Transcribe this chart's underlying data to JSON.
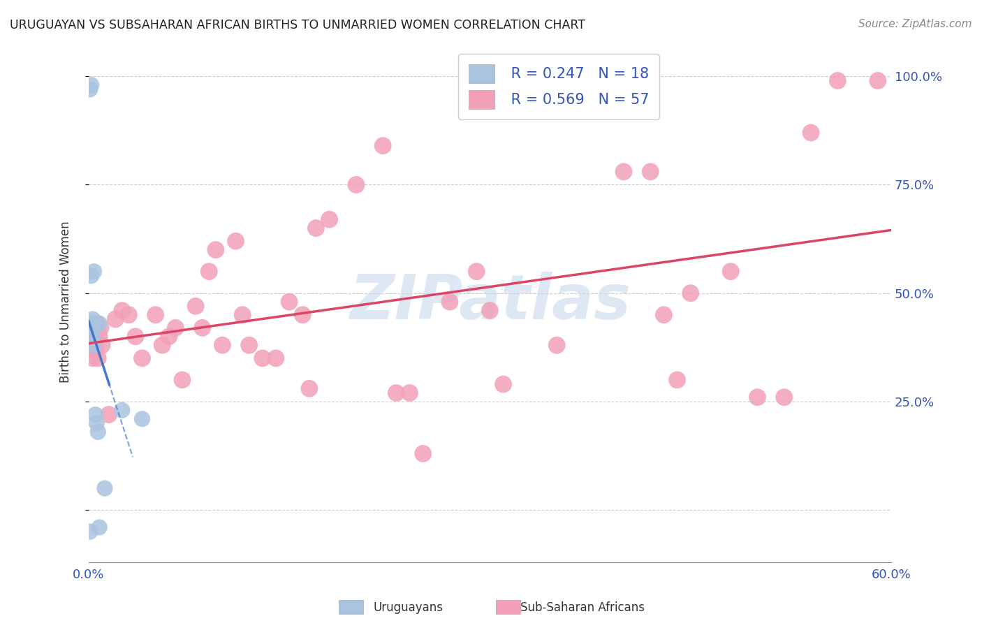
{
  "title": "URUGUAYAN VS SUBSAHARAN AFRICAN BIRTHS TO UNMARRIED WOMEN CORRELATION CHART",
  "source": "Source: ZipAtlas.com",
  "ylabel": "Births to Unmarried Women",
  "xlim": [
    0.0,
    0.6
  ],
  "ylim": [
    -0.12,
    1.08
  ],
  "xtick_positions": [
    0.0,
    0.1,
    0.2,
    0.3,
    0.4,
    0.5,
    0.6
  ],
  "xticklabels": [
    "0.0%",
    "",
    "",
    "",
    "",
    "",
    "60.0%"
  ],
  "ytick_positions": [
    0.0,
    0.25,
    0.5,
    0.75,
    1.0
  ],
  "yticklabels": [
    "",
    "25.0%",
    "50.0%",
    "75.0%",
    "100.0%"
  ],
  "background": "#ffffff",
  "grid_color": "#cccccc",
  "uruguayan_color": "#aac4e0",
  "subsaharan_color": "#f2a0b8",
  "trendline_blue": "#4477cc",
  "trendline_pink": "#dd4466",
  "watermark_color": "#c8d8ee",
  "legend_r1": "R = 0.247",
  "legend_n1": "N = 18",
  "legend_r2": "R = 0.569",
  "legend_n2": "N = 57",
  "label_color": "#3355bb",
  "uruguayan_x": [
    0.001,
    0.002,
    0.002,
    0.003,
    0.003,
    0.003,
    0.003,
    0.004,
    0.004,
    0.005,
    0.006,
    0.007,
    0.008,
    0.008,
    0.012,
    0.025,
    0.04,
    0.001
  ],
  "uruguayan_y": [
    0.97,
    0.98,
    0.54,
    0.42,
    0.44,
    0.4,
    0.43,
    0.38,
    0.55,
    0.22,
    0.2,
    0.18,
    0.43,
    -0.04,
    0.05,
    0.23,
    0.21,
    -0.05
  ],
  "subsaharan_x": [
    0.001,
    0.002,
    0.003,
    0.004,
    0.005,
    0.006,
    0.007,
    0.008,
    0.009,
    0.01,
    0.015,
    0.02,
    0.025,
    0.03,
    0.035,
    0.04,
    0.05,
    0.055,
    0.06,
    0.065,
    0.07,
    0.08,
    0.085,
    0.09,
    0.095,
    0.1,
    0.11,
    0.115,
    0.12,
    0.13,
    0.14,
    0.15,
    0.16,
    0.165,
    0.17,
    0.18,
    0.2,
    0.22,
    0.23,
    0.24,
    0.25,
    0.27,
    0.29,
    0.3,
    0.31,
    0.35,
    0.4,
    0.42,
    0.43,
    0.44,
    0.45,
    0.48,
    0.5,
    0.52,
    0.54,
    0.56,
    0.59
  ],
  "subsaharan_y": [
    0.42,
    0.38,
    0.35,
    0.4,
    0.37,
    0.43,
    0.35,
    0.4,
    0.42,
    0.38,
    0.22,
    0.44,
    0.46,
    0.45,
    0.4,
    0.35,
    0.45,
    0.38,
    0.4,
    0.42,
    0.3,
    0.47,
    0.42,
    0.55,
    0.6,
    0.38,
    0.62,
    0.45,
    0.38,
    0.35,
    0.35,
    0.48,
    0.45,
    0.28,
    0.65,
    0.67,
    0.75,
    0.84,
    0.27,
    0.27,
    0.13,
    0.48,
    0.55,
    0.46,
    0.29,
    0.38,
    0.78,
    0.78,
    0.45,
    0.3,
    0.5,
    0.55,
    0.26,
    0.26,
    0.87,
    0.99,
    0.99
  ]
}
